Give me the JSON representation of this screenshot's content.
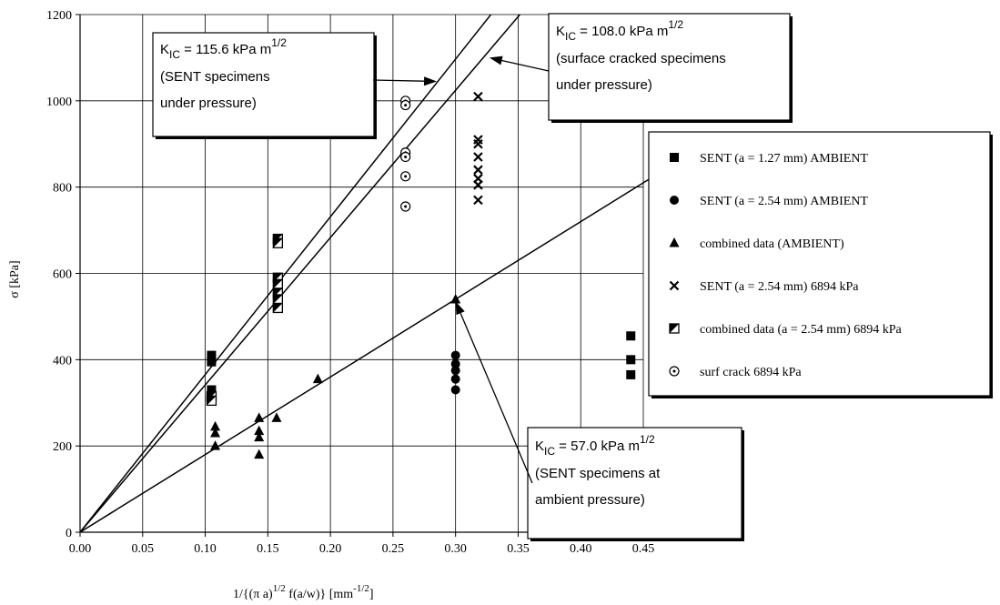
{
  "chart_data": {
    "type": "scatter",
    "title": "",
    "xlabel": {
      "main": "1/{(π a)",
      "sup1": "1/2",
      "mid": " f(a/w)} [mm",
      "sup2": "-1/2",
      "end": "]"
    },
    "ylabel": "σ [kPa]",
    "xlim": [
      0,
      0.45
    ],
    "ylim": [
      0,
      1200
    ],
    "xticks": [
      "0.00",
      "0.05",
      "0.10",
      "0.15",
      "0.20",
      "0.25",
      "0.30",
      "0.35",
      "0.40",
      "0.45"
    ],
    "yticks": [
      "0",
      "200",
      "400",
      "600",
      "800",
      "1000",
      "1200"
    ],
    "grid": true,
    "legend_position": "right",
    "series": [
      {
        "name": "SENT (a = 1.27 mm) AMBIENT",
        "marker": "square",
        "points": [
          [
            0.105,
            410
          ],
          [
            0.105,
            400
          ],
          [
            0.105,
            395
          ],
          [
            0.105,
            330
          ],
          [
            0.105,
            320
          ],
          [
            0.44,
            455
          ],
          [
            0.44,
            400
          ],
          [
            0.44,
            365
          ]
        ]
      },
      {
        "name": "SENT (a = 2.54 mm) AMBIENT",
        "marker": "circle",
        "points": [
          [
            0.3,
            410
          ],
          [
            0.3,
            390
          ],
          [
            0.3,
            375
          ],
          [
            0.3,
            355
          ],
          [
            0.3,
            330
          ]
        ]
      },
      {
        "name": "combined data (AMBIENT)",
        "marker": "triangle",
        "points": [
          [
            0.108,
            245
          ],
          [
            0.108,
            230
          ],
          [
            0.108,
            200
          ],
          [
            0.143,
            265
          ],
          [
            0.143,
            235
          ],
          [
            0.143,
            220
          ],
          [
            0.143,
            180
          ],
          [
            0.157,
            265
          ],
          [
            0.19,
            355
          ],
          [
            0.3,
            540
          ]
        ]
      },
      {
        "name": "SENT (a = 2.54 mm) 6894 kPa",
        "marker": "cross",
        "points": [
          [
            0.318,
            1010
          ],
          [
            0.318,
            910
          ],
          [
            0.318,
            900
          ],
          [
            0.318,
            870
          ],
          [
            0.318,
            840
          ],
          [
            0.318,
            820
          ],
          [
            0.318,
            805
          ],
          [
            0.318,
            770
          ]
        ]
      },
      {
        "name": "combined data (a = 2.54 mm) 6894 kPa",
        "marker": "half-square",
        "points": [
          [
            0.105,
            315
          ],
          [
            0.105,
            305
          ],
          [
            0.158,
            680
          ],
          [
            0.158,
            670
          ],
          [
            0.158,
            590
          ],
          [
            0.158,
            575
          ],
          [
            0.158,
            555
          ],
          [
            0.158,
            540
          ],
          [
            0.158,
            520
          ]
        ]
      },
      {
        "name": "surf crack 6894 kPa",
        "marker": "dot-circle",
        "points": [
          [
            0.26,
            1000
          ],
          [
            0.26,
            990
          ],
          [
            0.26,
            880
          ],
          [
            0.26,
            870
          ],
          [
            0.26,
            825
          ],
          [
            0.26,
            755
          ]
        ]
      }
    ],
    "fit_lines": [
      {
        "slope": 3656,
        "intercept": 0
      },
      {
        "slope": 3415,
        "intercept": 0
      },
      {
        "slope": 1800,
        "intercept": 0
      }
    ],
    "annotations": [
      {
        "kic": "115.6",
        "lines": [
          "(SENT specimens",
          "under pressure)"
        ]
      },
      {
        "kic": "108.0",
        "lines": [
          "(surface cracked specimens",
          "under pressure)"
        ]
      },
      {
        "kic": "57.0",
        "lines": [
          "(SENT specimens at",
          "ambient pressure)"
        ]
      }
    ],
    "annotation_parts": {
      "k": "K",
      "sub": "IC",
      "eq": " = ",
      "unit": " kPa m",
      "sup": "1/2"
    }
  }
}
